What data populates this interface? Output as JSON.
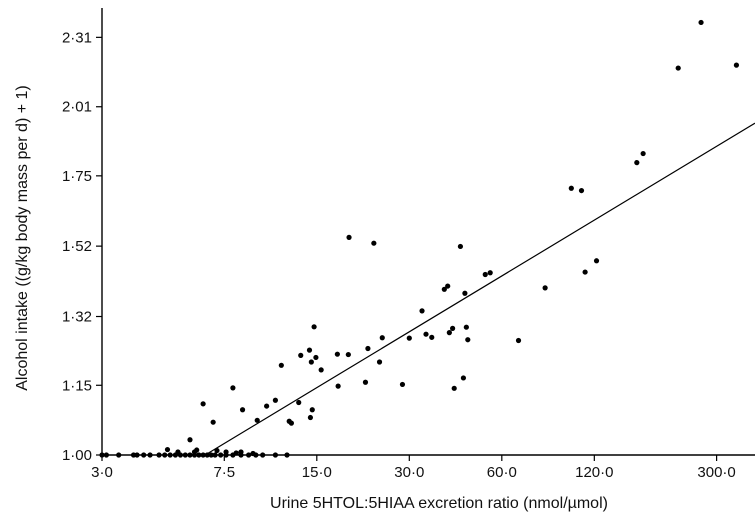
{
  "chart_data": {
    "type": "scatter",
    "title": "",
    "xlabel": "Urine 5HTOL:5HIAA excretion ratio (nmol/µmol)",
    "ylabel": "Alcohol intake ((g/kg body mass per d) + 1)",
    "x_scale": "log",
    "y_scale": "log",
    "xlim": [
      3.0,
      400.0
    ],
    "ylim": [
      1.0,
      2.45
    ],
    "x_ticks": [
      {
        "value": 3.0,
        "label": "3·0"
      },
      {
        "value": 7.5,
        "label": "7·5"
      },
      {
        "value": 15.0,
        "label": "15·0"
      },
      {
        "value": 30.0,
        "label": "30·0"
      },
      {
        "value": 60.0,
        "label": "60·0"
      },
      {
        "value": 120.0,
        "label": "120·0"
      },
      {
        "value": 300.0,
        "label": "300·0"
      }
    ],
    "y_ticks": [
      {
        "value": 1.0,
        "label": "1·00"
      },
      {
        "value": 1.15,
        "label": "1·15"
      },
      {
        "value": 1.32,
        "label": "1·32"
      },
      {
        "value": 1.52,
        "label": "1·52"
      },
      {
        "value": 1.75,
        "label": "1·75"
      },
      {
        "value": 2.01,
        "label": "2·01"
      },
      {
        "value": 2.31,
        "label": "2·31"
      }
    ],
    "grid": false,
    "legend": "none",
    "series": [
      {
        "marker_color": "#000000",
        "points": [
          [
            3.0,
            1.0
          ],
          [
            3.1,
            1.0
          ],
          [
            3.4,
            1.0
          ],
          [
            3.8,
            1.0
          ],
          [
            3.9,
            1.0
          ],
          [
            4.1,
            1.0
          ],
          [
            4.3,
            1.0
          ],
          [
            4.6,
            1.0
          ],
          [
            4.8,
            1.0
          ],
          [
            5.0,
            1.0
          ],
          [
            5.2,
            1.0
          ],
          [
            5.4,
            1.0
          ],
          [
            5.6,
            1.0
          ],
          [
            5.8,
            1.0
          ],
          [
            6.0,
            1.0
          ],
          [
            6.2,
            1.0
          ],
          [
            6.4,
            1.0
          ],
          [
            6.6,
            1.0
          ],
          [
            6.8,
            1.0
          ],
          [
            7.0,
            1.0
          ],
          [
            7.3,
            1.0
          ],
          [
            7.6,
            1.0
          ],
          [
            8.0,
            1.0
          ],
          [
            8.5,
            1.0
          ],
          [
            9.0,
            1.0
          ],
          [
            9.5,
            1.0
          ],
          [
            10.0,
            1.0
          ],
          [
            11.0,
            1.0
          ],
          [
            12.0,
            1.0
          ],
          [
            4.9,
            1.011
          ],
          [
            5.3,
            1.006
          ],
          [
            5.8,
            1.031
          ],
          [
            6.0,
            1.006
          ],
          [
            6.1,
            1.01
          ],
          [
            7.1,
            1.009
          ],
          [
            7.6,
            1.006
          ],
          [
            8.2,
            1.004
          ],
          [
            8.5,
            1.006
          ],
          [
            9.3,
            1.003
          ],
          [
            6.4,
            1.108
          ],
          [
            6.9,
            1.068
          ],
          [
            8.0,
            1.144
          ],
          [
            8.6,
            1.095
          ],
          [
            9.6,
            1.072
          ],
          [
            10.3,
            1.103
          ],
          [
            11.0,
            1.116
          ],
          [
            11.5,
            1.197
          ],
          [
            12.2,
            1.07
          ],
          [
            12.4,
            1.066
          ],
          [
            13.1,
            1.111
          ],
          [
            13.3,
            1.221
          ],
          [
            14.2,
            1.234
          ],
          [
            14.3,
            1.078
          ],
          [
            14.4,
            1.205
          ],
          [
            14.5,
            1.095
          ],
          [
            14.7,
            1.293
          ],
          [
            14.9,
            1.216
          ],
          [
            15.5,
            1.186
          ],
          [
            17.5,
            1.224
          ],
          [
            17.6,
            1.148
          ],
          [
            19.0,
            1.223
          ],
          [
            19.1,
            1.547
          ],
          [
            21.6,
            1.157
          ],
          [
            22.0,
            1.238
          ],
          [
            23.0,
            1.529
          ],
          [
            24.0,
            1.205
          ],
          [
            24.5,
            1.265
          ],
          [
            28.5,
            1.152
          ],
          [
            30.0,
            1.264
          ],
          [
            33.0,
            1.335
          ],
          [
            34.0,
            1.274
          ],
          [
            35.5,
            1.266
          ],
          [
            39.0,
            1.394
          ],
          [
            40.0,
            1.403
          ],
          [
            40.5,
            1.278
          ],
          [
            41.5,
            1.289
          ],
          [
            42.0,
            1.143
          ],
          [
            44.0,
            1.519
          ],
          [
            45.0,
            1.167
          ],
          [
            45.5,
            1.383
          ],
          [
            46.0,
            1.292
          ],
          [
            46.5,
            1.26
          ],
          [
            53.0,
            1.436
          ],
          [
            55.0,
            1.441
          ],
          [
            68.0,
            1.258
          ],
          [
            83.0,
            1.398
          ],
          [
            101.0,
            1.707
          ],
          [
            109.0,
            1.699
          ],
          [
            112.0,
            1.443
          ],
          [
            122.0,
            1.476
          ],
          [
            165.0,
            1.797
          ],
          [
            173.0,
            1.83
          ],
          [
            225.0,
            2.172
          ],
          [
            267.0,
            2.38
          ],
          [
            348.0,
            2.185
          ]
        ]
      }
    ],
    "fit_line": {
      "from": [
        6.5,
        1.0
      ],
      "to": [
        400.0,
        1.945
      ]
    }
  }
}
